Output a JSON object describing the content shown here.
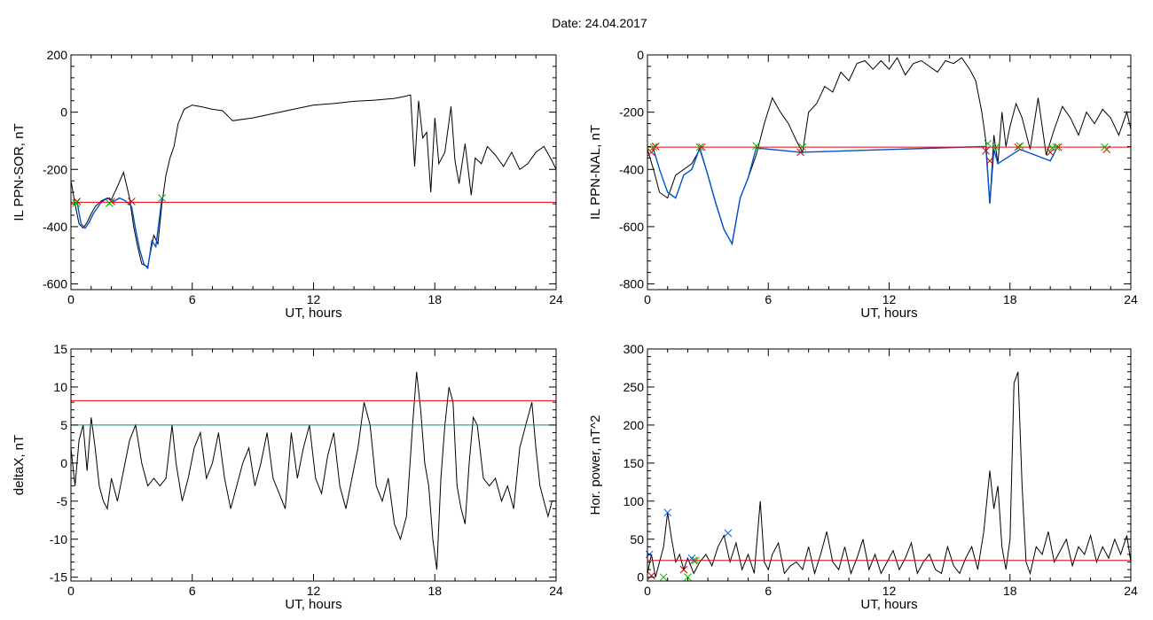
{
  "header": {
    "title": "Date:  24.04.2017"
  },
  "colors": {
    "trace": "#000000",
    "threshold_red": "#e8000b",
    "threshold_teal": "#008b8b",
    "quiet_blue": "#0050d0",
    "marker_red": "#d40000",
    "marker_green": "#00b000",
    "marker_blue": "#0060ff"
  },
  "chart_data": [
    {
      "id": "sor",
      "type": "line",
      "ylabel": "IL PPN-SOR, nT",
      "xlabel": "UT, hours",
      "xlim": [
        0,
        24
      ],
      "ylim": [
        -620,
        200
      ],
      "xticks": [
        0,
        6,
        12,
        18,
        24
      ],
      "yticks": [
        -600,
        -400,
        -200,
        0,
        200
      ],
      "series": [
        {
          "color": "black",
          "x": [
            0,
            0.2,
            0.4,
            0.6,
            0.8,
            1,
            1.2,
            1.5,
            1.8,
            2,
            2.3,
            2.6,
            2.9,
            3.1,
            3.3,
            3.5,
            3.8,
            4.1,
            4.3,
            4.5,
            4.7,
            4.9,
            5.1,
            5.3,
            5.6,
            6,
            6.5,
            7,
            7.5,
            8,
            9,
            10,
            11,
            12,
            13,
            14,
            15,
            16,
            16.5,
            16.8,
            17,
            17.2,
            17.4,
            17.6,
            17.8,
            18,
            18.2,
            18.5,
            18.8,
            19,
            19.2,
            19.5,
            19.8,
            20,
            20.3,
            20.6,
            21,
            21.4,
            21.8,
            22.2,
            22.6,
            23,
            23.4,
            23.8,
            24
          ],
          "y": [
            -240,
            -320,
            -390,
            -405,
            -385,
            -355,
            -330,
            -310,
            -300,
            -305,
            -260,
            -210,
            -300,
            -400,
            -470,
            -530,
            -540,
            -430,
            -460,
            -320,
            -220,
            -160,
            -120,
            -40,
            10,
            25,
            18,
            10,
            5,
            -30,
            -20,
            -5,
            10,
            25,
            30,
            38,
            42,
            48,
            55,
            60,
            -190,
            40,
            -90,
            -70,
            -280,
            -20,
            -180,
            -140,
            20,
            -170,
            -250,
            -110,
            -290,
            -160,
            -180,
            -120,
            -150,
            -190,
            -140,
            -200,
            -180,
            -140,
            -120,
            -170,
            -200
          ]
        },
        {
          "color": "blue",
          "x": [
            0.3,
            0.5,
            0.7,
            0.9,
            1.1,
            1.3,
            1.5,
            1.7,
            1.9,
            2.1,
            2.4,
            2.7,
            3,
            3.2,
            3.4,
            3.6,
            3.8,
            4,
            4.2,
            4.5
          ],
          "y": [
            -312,
            -390,
            -405,
            -385,
            -355,
            -335,
            -315,
            -305,
            -300,
            -312,
            -300,
            -310,
            -330,
            -410,
            -480,
            -530,
            -545,
            -450,
            -470,
            -300
          ]
        },
        {
          "color": "red_threshold",
          "x": [
            0,
            24
          ],
          "y": [
            -315,
            -315
          ]
        }
      ],
      "markers_red": {
        "x": [
          0.3,
          2.0,
          3.0
        ],
        "y": [
          -312,
          -312,
          -312
        ]
      },
      "markers_green": {
        "x": [
          0.25,
          1.9,
          4.5
        ],
        "y": [
          -318,
          -318,
          -300
        ]
      }
    },
    {
      "id": "nal",
      "type": "line",
      "ylabel": "IL PPN-NAL, nT",
      "xlabel": "UT, hours",
      "xlim": [
        0,
        24
      ],
      "ylim": [
        -820,
        0
      ],
      "xticks": [
        0,
        6,
        12,
        18,
        24
      ],
      "yticks": [
        -800,
        -600,
        -400,
        -200,
        0
      ],
      "series": [
        {
          "color": "black",
          "x": [
            0,
            0.3,
            0.6,
            1,
            1.4,
            1.8,
            2.2,
            2.6,
            3,
            3.4,
            3.8,
            4.2,
            4.6,
            5,
            5.4,
            5.8,
            6.2,
            6.6,
            7,
            7.4,
            7.7,
            8,
            8.4,
            8.8,
            9.2,
            9.6,
            10,
            10.4,
            10.8,
            11.2,
            11.6,
            12,
            12.4,
            12.8,
            13.2,
            13.6,
            14,
            14.4,
            14.8,
            15.2,
            15.6,
            16,
            16.3,
            16.6,
            16.8,
            17,
            17.2,
            17.4,
            17.6,
            17.8,
            18,
            18.3,
            18.6,
            19,
            19.4,
            19.8,
            20.2,
            20.6,
            21,
            21.4,
            21.8,
            22.2,
            22.6,
            23,
            23.4,
            23.8,
            24
          ],
          "y": [
            -330,
            -400,
            -480,
            -500,
            -420,
            -400,
            -380,
            -330,
            -420,
            -520,
            -610,
            -660,
            -500,
            -430,
            -350,
            -240,
            -150,
            -200,
            -240,
            -300,
            -340,
            -200,
            -170,
            -110,
            -130,
            -60,
            -90,
            -30,
            -20,
            -50,
            -20,
            -50,
            -10,
            -70,
            -30,
            -20,
            -40,
            -60,
            -20,
            -30,
            -10,
            -50,
            -90,
            -200,
            -300,
            -520,
            -280,
            -380,
            -200,
            -320,
            -250,
            -170,
            -220,
            -330,
            -150,
            -350,
            -260,
            -180,
            -220,
            -280,
            -200,
            -240,
            -190,
            -220,
            -280,
            -200,
            -260
          ]
        },
        {
          "color": "blue",
          "x": [
            0.3,
            0.6,
            1,
            1.4,
            1.8,
            2.2,
            2.6,
            3,
            3.4,
            3.8,
            4.2,
            4.6,
            5,
            5.4,
            7.6,
            16.8,
            17,
            17.2,
            17.4,
            18.5,
            20,
            20.3
          ],
          "y": [
            -330,
            -400,
            -480,
            -500,
            -420,
            -400,
            -325,
            -420,
            -520,
            -610,
            -660,
            -500,
            -430,
            -325,
            -340,
            -320,
            -520,
            -330,
            -380,
            -330,
            -370,
            -330
          ]
        },
        {
          "color": "red_threshold",
          "x": [
            0,
            24
          ],
          "y": [
            -322,
            -322
          ]
        }
      ],
      "markers_red": {
        "x": [
          0.2,
          0.4,
          2.7,
          7.6,
          16.8,
          17.0,
          18.4,
          20.0,
          20.4,
          22.8
        ],
        "y": [
          -340,
          -320,
          -322,
          -340,
          -335,
          -370,
          -322,
          -340,
          -322,
          -330
        ]
      },
      "markers_green": {
        "x": [
          0.3,
          2.6,
          5.4,
          7.7,
          16.9,
          17.3,
          18.5,
          20.1,
          20.3,
          22.7
        ],
        "y": [
          -322,
          -322,
          -318,
          -322,
          -310,
          -322,
          -318,
          -325,
          -322,
          -322
        ]
      }
    },
    {
      "id": "deltax",
      "type": "line",
      "ylabel": "deltaX, nT",
      "xlabel": "UT, hours",
      "xlim": [
        0,
        24
      ],
      "ylim": [
        -15.5,
        15
      ],
      "xticks": [
        0,
        6,
        12,
        18,
        24
      ],
      "yticks": [
        -15,
        -10,
        -5,
        0,
        5,
        10,
        15
      ],
      "series": [
        {
          "color": "black",
          "x": [
            0,
            0.2,
            0.4,
            0.6,
            0.8,
            1,
            1.2,
            1.4,
            1.6,
            1.8,
            2,
            2.3,
            2.6,
            2.9,
            3.2,
            3.5,
            3.8,
            4.1,
            4.4,
            4.7,
            5,
            5.2,
            5.5,
            5.8,
            6.1,
            6.4,
            6.7,
            7,
            7.3,
            7.6,
            7.9,
            8.2,
            8.5,
            8.8,
            9.1,
            9.4,
            9.7,
            10,
            10.3,
            10.6,
            10.9,
            11.2,
            11.5,
            11.8,
            12.1,
            12.4,
            12.7,
            13,
            13.3,
            13.6,
            13.9,
            14.2,
            14.5,
            14.8,
            15.1,
            15.4,
            15.7,
            16,
            16.3,
            16.6,
            16.9,
            17.1,
            17.3,
            17.5,
            17.7,
            17.9,
            18.1,
            18.3,
            18.5,
            18.7,
            18.9,
            19.1,
            19.3,
            19.5,
            19.7,
            19.9,
            20.1,
            20.4,
            20.7,
            21,
            21.3,
            21.6,
            21.9,
            22.2,
            22.5,
            22.8,
            23,
            23.2,
            23.4,
            23.6,
            23.8,
            24
          ],
          "y": [
            2,
            -3,
            3,
            5,
            -1,
            6,
            2,
            -3,
            -5,
            -6,
            -2,
            -5,
            -1,
            3,
            5,
            0,
            -3,
            -2,
            -3,
            -2,
            5,
            0,
            -5,
            -2,
            2,
            4,
            -2,
            0,
            4,
            -2,
            -6,
            -3,
            0,
            2,
            -3,
            0,
            4,
            -2,
            -4,
            -6,
            4,
            -2,
            2,
            5,
            -2,
            -4,
            1,
            4,
            -3,
            -6,
            -2,
            2,
            8,
            5,
            -3,
            -5,
            -2,
            -8,
            -10,
            -7,
            5,
            12,
            7,
            0,
            -3,
            -10,
            -14,
            -2,
            5,
            10,
            8,
            -3,
            -6,
            -8,
            0,
            6,
            5,
            -2,
            -3,
            -2,
            -5,
            -3,
            -6,
            2,
            5,
            8,
            2,
            -3,
            -5,
            -7,
            -5,
            -5
          ]
        },
        {
          "color": "red_threshold",
          "x": [
            0,
            24
          ],
          "y": [
            8.2,
            8.2
          ]
        },
        {
          "color": "teal_threshold",
          "x": [
            0,
            24
          ],
          "y": [
            5,
            5
          ]
        }
      ]
    },
    {
      "id": "power",
      "type": "line",
      "ylabel": "Hor. power, nT^2",
      "xlabel": "UT, hours",
      "xlim": [
        0,
        24
      ],
      "ylim": [
        -5,
        300
      ],
      "xticks": [
        0,
        6,
        12,
        18,
        24
      ],
      "yticks": [
        0,
        50,
        100,
        150,
        200,
        250,
        300
      ],
      "series": [
        {
          "color": "black",
          "x": [
            0,
            0.2,
            0.4,
            0.6,
            0.8,
            1,
            1.2,
            1.4,
            1.6,
            1.8,
            2,
            2.3,
            2.6,
            2.9,
            3.2,
            3.5,
            3.8,
            4.1,
            4.4,
            4.7,
            5,
            5.3,
            5.6,
            5.8,
            6,
            6.2,
            6.5,
            6.8,
            7.1,
            7.4,
            7.7,
            8,
            8.3,
            8.6,
            8.9,
            9.2,
            9.5,
            9.8,
            10.1,
            10.4,
            10.7,
            11,
            11.3,
            11.6,
            11.9,
            12.2,
            12.5,
            12.8,
            13.1,
            13.4,
            13.7,
            14,
            14.3,
            14.6,
            14.9,
            15.2,
            15.5,
            15.8,
            16.1,
            16.4,
            16.7,
            17,
            17.2,
            17.4,
            17.6,
            17.8,
            18,
            18.2,
            18.4,
            18.6,
            18.8,
            19,
            19.3,
            19.6,
            19.9,
            20.2,
            20.5,
            20.8,
            21.1,
            21.4,
            21.7,
            22,
            22.3,
            22.6,
            22.9,
            23.2,
            23.5,
            23.8,
            24
          ],
          "y": [
            5,
            30,
            0,
            20,
            40,
            85,
            50,
            20,
            30,
            10,
            25,
            5,
            20,
            30,
            15,
            40,
            55,
            20,
            45,
            10,
            30,
            5,
            100,
            20,
            10,
            30,
            45,
            5,
            15,
            20,
            10,
            40,
            5,
            30,
            60,
            20,
            10,
            40,
            5,
            25,
            50,
            10,
            30,
            5,
            20,
            35,
            10,
            25,
            45,
            5,
            20,
            30,
            10,
            5,
            40,
            15,
            5,
            25,
            40,
            10,
            60,
            140,
            90,
            120,
            40,
            10,
            50,
            255,
            270,
            120,
            20,
            5,
            40,
            30,
            60,
            20,
            35,
            50,
            15,
            40,
            30,
            55,
            20,
            40,
            25,
            50,
            30,
            55,
            20
          ]
        },
        {
          "color": "red_threshold",
          "x": [
            0,
            24
          ],
          "y": [
            22,
            22
          ]
        }
      ],
      "markers_red": {
        "x": [
          0.2,
          1.8,
          2.3
        ],
        "y": [
          2,
          10,
          22
        ]
      },
      "markers_green": {
        "x": [
          0.8,
          2.0,
          2.4
        ],
        "y": [
          0,
          0,
          22
        ]
      },
      "markers_blue": {
        "x": [
          0.1,
          1.0,
          2.2,
          4.0
        ],
        "y": [
          30,
          85,
          25,
          58
        ]
      }
    }
  ]
}
